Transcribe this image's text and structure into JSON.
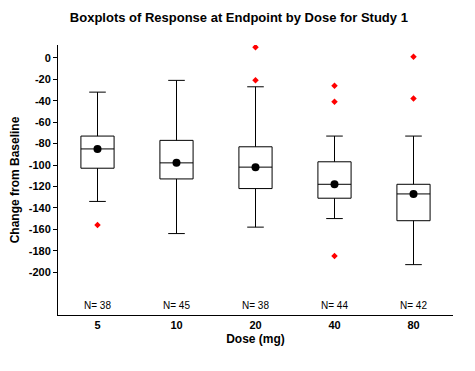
{
  "chart_data": {
    "type": "box",
    "title": "Boxplots of Response at Endpoint by Dose for Study 1",
    "x_label": "Dose (mg)",
    "y_label": "Change from Baseline",
    "categories": [
      "5",
      "10",
      "20",
      "40",
      "80"
    ],
    "boxes": {
      "q1": [
        -103,
        -113,
        -122,
        -131,
        -152
      ],
      "median": [
        -85,
        -98,
        -102,
        -118,
        -127
      ],
      "q3": [
        -73,
        -77,
        -83,
        -97,
        -118
      ],
      "lower_whisker": [
        -134,
        -164,
        -158,
        -150,
        -193
      ],
      "upper_whisker": [
        -32,
        -21,
        -27,
        -73,
        -73
      ],
      "color": "#000000",
      "marker": "circle"
    },
    "outliers": {
      "values": [
        [
          -156
        ],
        [],
        [
          10,
          -21
        ],
        [
          -26,
          -41,
          -185
        ],
        [
          1,
          -38
        ]
      ],
      "color": "#ff0000",
      "marker": "diamond"
    },
    "n_labels": [
      "N= 38",
      "N= 45",
      "N= 38",
      "N= 44",
      "N= 42"
    ],
    "ylim": [
      -240,
      12
    ],
    "yticks": [
      0,
      -20,
      -40,
      -60,
      -80,
      -100,
      -120,
      -140,
      -160,
      -180,
      -200
    ],
    "grid": false
  }
}
